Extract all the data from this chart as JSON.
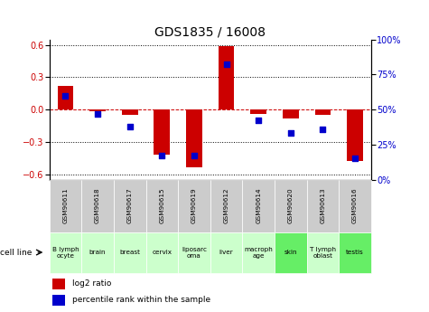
{
  "title": "GDS1835 / 16008",
  "samples": [
    "GSM90611",
    "GSM90618",
    "GSM90617",
    "GSM90615",
    "GSM90619",
    "GSM90612",
    "GSM90614",
    "GSM90620",
    "GSM90613",
    "GSM90616"
  ],
  "cell_lines": [
    "B lymph\nocyte",
    "brain",
    "breast",
    "cervix",
    "liposarc\noma",
    "liver",
    "macroph\nage",
    "skin",
    "T lymph\noblast",
    "testis"
  ],
  "log2_ratio": [
    0.22,
    -0.02,
    -0.05,
    -0.42,
    -0.54,
    0.59,
    -0.04,
    -0.08,
    -0.05,
    -0.48
  ],
  "percentile_rank": [
    60,
    47,
    38,
    17,
    17,
    82,
    42,
    33,
    36,
    15
  ],
  "bar_color": "#cc0000",
  "dot_color": "#0000cc",
  "ylim_left": [
    -0.65,
    0.65
  ],
  "ylim_right": [
    0,
    100
  ],
  "yticks_left": [
    -0.6,
    -0.3,
    0.0,
    0.3,
    0.6
  ],
  "yticks_right": [
    0,
    25,
    50,
    75,
    100
  ],
  "cell_line_colors": [
    "#ccffcc",
    "#ccffcc",
    "#ccffcc",
    "#ccffcc",
    "#ccffcc",
    "#ccffcc",
    "#ccffcc",
    "#66ee66",
    "#ccffcc",
    "#66ee66"
  ],
  "gsm_bg": "#cccccc",
  "title_fontsize": 10,
  "axis_fontsize": 7,
  "tick_fontsize": 7
}
